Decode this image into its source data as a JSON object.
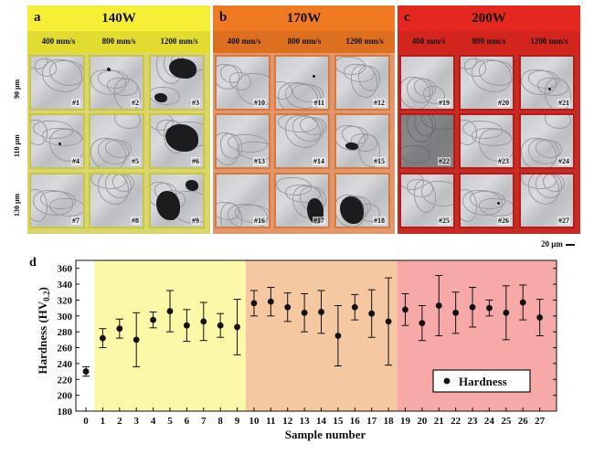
{
  "panels": [
    {
      "letter": "a",
      "power": "140W",
      "header_color": "#f6ef35",
      "body_color": "#d9d66a",
      "frame_color": "#c8c64a",
      "speeds": [
        "400 mm/s",
        "800 mm/s",
        "1200 mm/s"
      ],
      "samples": [
        "#1",
        "#2",
        "#3",
        "#4",
        "#5",
        "#6",
        "#7",
        "#8",
        "#9"
      ]
    },
    {
      "letter": "b",
      "power": "170W",
      "header_color": "#f07a22",
      "body_color": "#e4956a",
      "frame_color": "#d57a3d",
      "speeds": [
        "400 mm/s",
        "800 mm/s",
        "1200 mm/s"
      ],
      "samples": [
        "#10",
        "#11",
        "#12",
        "#13",
        "#14",
        "#15",
        "#16",
        "#17",
        "#18"
      ]
    },
    {
      "letter": "c",
      "power": "200W",
      "header_color": "#e5281f",
      "body_color": "#c82a24",
      "frame_color": "#b31d18",
      "speeds": [
        "400 mm/s",
        "800 mm/s",
        "1200 mm/s"
      ],
      "samples": [
        "#19",
        "#20",
        "#21",
        "#22",
        "#23",
        "#24",
        "#25",
        "#26",
        "#27"
      ]
    }
  ],
  "row_labels": [
    "90 μm",
    "110 μm",
    "130 μm"
  ],
  "scale_bar": "20 μm",
  "chart_data": {
    "type": "scatter",
    "panel_letter": "d",
    "xlabel": "Sample number",
    "ylabel": "Hardness (HV",
    "ylabel_sub": "0.2",
    "ylabel_end": ")",
    "xlim": [
      -0.6,
      28.0
    ],
    "ylim": [
      180,
      370
    ],
    "yticks": [
      180,
      200,
      220,
      240,
      260,
      280,
      300,
      320,
      340,
      360
    ],
    "xticks": [
      0,
      1,
      2,
      3,
      4,
      5,
      6,
      7,
      8,
      9,
      10,
      11,
      12,
      13,
      14,
      15,
      16,
      17,
      18,
      19,
      20,
      21,
      22,
      23,
      24,
      25,
      26,
      27
    ],
    "regions": [
      {
        "from": 0.5,
        "to": 9.5,
        "color": "#fbf8a8"
      },
      {
        "from": 9.5,
        "to": 18.5,
        "color": "#f4c8a0"
      },
      {
        "from": 18.5,
        "to": 28.0,
        "color": "#f7a9a7"
      }
    ],
    "legend": {
      "label": "Hardness",
      "position": "bottom-right"
    },
    "series": [
      {
        "name": "Hardness",
        "x": [
          0,
          1,
          2,
          3,
          4,
          5,
          6,
          7,
          8,
          9,
          10,
          11,
          12,
          13,
          14,
          15,
          16,
          17,
          18,
          19,
          20,
          21,
          22,
          23,
          24,
          25,
          26,
          27
        ],
        "y": [
          230,
          272,
          284,
          270,
          295,
          306,
          288,
          293,
          288,
          286,
          316,
          318,
          311,
          304,
          305,
          275,
          311,
          303,
          293,
          308,
          291,
          313,
          304,
          311,
          310,
          304,
          317,
          298
        ],
        "err": [
          6,
          12,
          12,
          34,
          10,
          26,
          20,
          24,
          15,
          35,
          16,
          18,
          18,
          24,
          27,
          38,
          16,
          30,
          55,
          20,
          22,
          38,
          26,
          25,
          10,
          34,
          22,
          23
        ]
      }
    ]
  }
}
